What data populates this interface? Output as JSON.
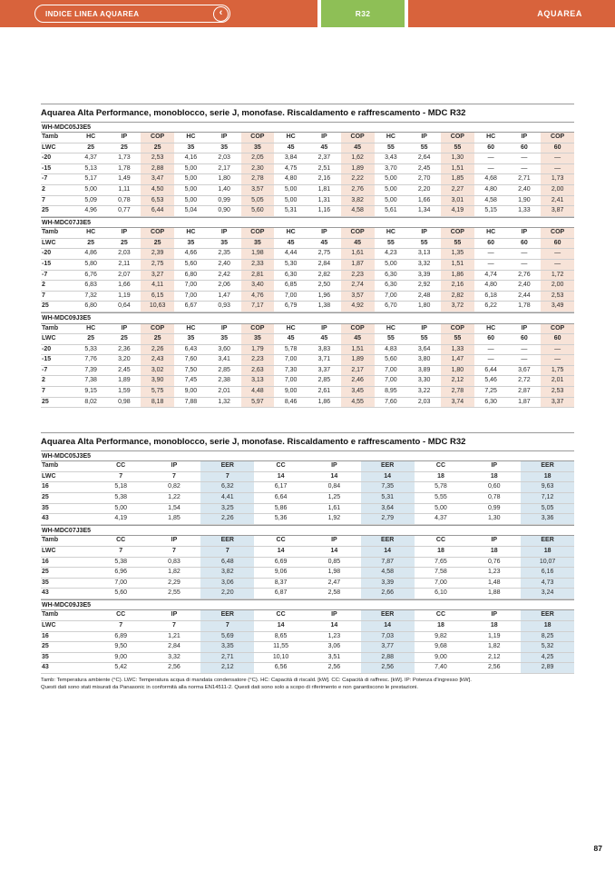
{
  "header": {
    "index_button": "INDICE LINEA AQUAREA",
    "back_chevron": "‹",
    "badge": "R32",
    "brand": "AQUAREA"
  },
  "colors": {
    "topbar_orange": "#D8633C",
    "badge_green": "#8EBF56",
    "cop_highlight": "#F7E3D8",
    "eer_highlight": "#D9E7F0"
  },
  "sections": [
    {
      "title": "Aquarea Alta Performance, monoblocco, serie J, monofase. Riscaldamento e raffrescamento - MDC  R32",
      "type": "heating",
      "highlight": "#F7E3D8",
      "col_headers": [
        "Tamb",
        "HC",
        "IP",
        "COP",
        "HC",
        "IP",
        "COP",
        "HC",
        "IP",
        "COP",
        "HC",
        "IP",
        "COP",
        "HC",
        "IP",
        "COP"
      ],
      "lwc_row": [
        "LWC",
        "25",
        "25",
        "25",
        "35",
        "35",
        "35",
        "45",
        "45",
        "45",
        "55",
        "55",
        "55",
        "60",
        "60",
        "60"
      ],
      "tables": [
        {
          "model": "WH-MDC05J3E5",
          "rows": [
            [
              "-20",
              "4,37",
              "1,73",
              "2,53",
              "4,16",
              "2,03",
              "2,05",
              "3,84",
              "2,37",
              "1,62",
              "3,43",
              "2,64",
              "1,30",
              "—",
              "—",
              "—"
            ],
            [
              "-15",
              "5,13",
              "1,78",
              "2,88",
              "5,00",
              "2,17",
              "2,30",
              "4,75",
              "2,51",
              "1,89",
              "3,70",
              "2,45",
              "1,51",
              "—",
              "—",
              "—"
            ],
            [
              "-7",
              "5,17",
              "1,49",
              "3,47",
              "5,00",
              "1,80",
              "2,78",
              "4,80",
              "2,16",
              "2,22",
              "5,00",
              "2,70",
              "1,85",
              "4,68",
              "2,71",
              "1,73"
            ],
            [
              "2",
              "5,00",
              "1,11",
              "4,50",
              "5,00",
              "1,40",
              "3,57",
              "5,00",
              "1,81",
              "2,76",
              "5,00",
              "2,20",
              "2,27",
              "4,80",
              "2,40",
              "2,00"
            ],
            [
              "7",
              "5,09",
              "0,78",
              "6,53",
              "5,00",
              "0,99",
              "5,05",
              "5,00",
              "1,31",
              "3,82",
              "5,00",
              "1,66",
              "3,01",
              "4,58",
              "1,90",
              "2,41"
            ],
            [
              "25",
              "4,96",
              "0,77",
              "6,44",
              "5,04",
              "0,90",
              "5,60",
              "5,31",
              "1,16",
              "4,58",
              "5,61",
              "1,34",
              "4,19",
              "5,15",
              "1,33",
              "3,87"
            ]
          ]
        },
        {
          "model": "WH-MDC07J3E5",
          "rows": [
            [
              "-20",
              "4,86",
              "2,03",
              "2,39",
              "4,66",
              "2,35",
              "1,98",
              "4,44",
              "2,75",
              "1,61",
              "4,23",
              "3,13",
              "1,35",
              "—",
              "—",
              "—"
            ],
            [
              "-15",
              "5,80",
              "2,11",
              "2,75",
              "5,60",
              "2,40",
              "2,33",
              "5,30",
              "2,84",
              "1,87",
              "5,00",
              "3,32",
              "1,51",
              "—",
              "—",
              "—"
            ],
            [
              "-7",
              "6,76",
              "2,07",
              "3,27",
              "6,80",
              "2,42",
              "2,81",
              "6,30",
              "2,82",
              "2,23",
              "6,30",
              "3,39",
              "1,86",
              "4,74",
              "2,76",
              "1,72"
            ],
            [
              "2",
              "6,83",
              "1,66",
              "4,11",
              "7,00",
              "2,06",
              "3,40",
              "6,85",
              "2,50",
              "2,74",
              "6,30",
              "2,92",
              "2,16",
              "4,80",
              "2,40",
              "2,00"
            ],
            [
              "7",
              "7,32",
              "1,19",
              "6,15",
              "7,00",
              "1,47",
              "4,76",
              "7,00",
              "1,96",
              "3,57",
              "7,00",
              "2,48",
              "2,82",
              "6,18",
              "2,44",
              "2,53"
            ],
            [
              "25",
              "6,80",
              "0,64",
              "10,63",
              "6,67",
              "0,93",
              "7,17",
              "6,79",
              "1,38",
              "4,92",
              "6,70",
              "1,80",
              "3,72",
              "6,22",
              "1,78",
              "3,49"
            ]
          ]
        },
        {
          "model": "WH-MDC09J3E5",
          "rows": [
            [
              "-20",
              "5,33",
              "2,36",
              "2,26",
              "6,43",
              "3,60",
              "1,79",
              "5,78",
              "3,83",
              "1,51",
              "4,83",
              "3,64",
              "1,33",
              "—",
              "—",
              "—"
            ],
            [
              "-15",
              "7,76",
              "3,20",
              "2,43",
              "7,60",
              "3,41",
              "2,23",
              "7,00",
              "3,71",
              "1,89",
              "5,60",
              "3,80",
              "1,47",
              "—",
              "—",
              "—"
            ],
            [
              "-7",
              "7,39",
              "2,45",
              "3,02",
              "7,50",
              "2,85",
              "2,63",
              "7,30",
              "3,37",
              "2,17",
              "7,00",
              "3,89",
              "1,80",
              "6,44",
              "3,67",
              "1,75"
            ],
            [
              "2",
              "7,38",
              "1,89",
              "3,90",
              "7,45",
              "2,38",
              "3,13",
              "7,00",
              "2,85",
              "2,46",
              "7,00",
              "3,30",
              "2,12",
              "5,46",
              "2,72",
              "2,01"
            ],
            [
              "7",
              "9,15",
              "1,59",
              "5,75",
              "9,00",
              "2,01",
              "4,48",
              "9,00",
              "2,61",
              "3,45",
              "8,95",
              "3,22",
              "2,78",
              "7,25",
              "2,87",
              "2,53"
            ],
            [
              "25",
              "8,02",
              "0,98",
              "8,18",
              "7,88",
              "1,32",
              "5,97",
              "8,46",
              "1,86",
              "4,55",
              "7,60",
              "2,03",
              "3,74",
              "6,30",
              "1,87",
              "3,37"
            ]
          ]
        }
      ]
    },
    {
      "title": "Aquarea Alta Performance, monoblocco, serie J, monofase. Riscaldamento e raffrescamento - MDC  R32",
      "type": "cooling",
      "highlight": "#D9E7F0",
      "col_headers": [
        "Tamb",
        "CC",
        "IP",
        "EER",
        "CC",
        "IP",
        "EER",
        "CC",
        "IP",
        "EER"
      ],
      "lwc_row": [
        "LWC",
        "7",
        "7",
        "7",
        "14",
        "14",
        "14",
        "18",
        "18",
        "18"
      ],
      "tables": [
        {
          "model": "WH-MDC05J3E5",
          "rows": [
            [
              "16",
              "5,18",
              "0,82",
              "6,32",
              "6,17",
              "0,84",
              "7,35",
              "5,78",
              "0,60",
              "9,63"
            ],
            [
              "25",
              "5,38",
              "1,22",
              "4,41",
              "6,64",
              "1,25",
              "5,31",
              "5,55",
              "0,78",
              "7,12"
            ],
            [
              "35",
              "5,00",
              "1,54",
              "3,25",
              "5,86",
              "1,61",
              "3,64",
              "5,00",
              "0,99",
              "5,05"
            ],
            [
              "43",
              "4,19",
              "1,85",
              "2,26",
              "5,36",
              "1,92",
              "2,79",
              "4,37",
              "1,30",
              "3,36"
            ]
          ]
        },
        {
          "model": "WH-MDC07J3E5",
          "rows": [
            [
              "16",
              "5,38",
              "0,83",
              "6,48",
              "6,69",
              "0,85",
              "7,87",
              "7,65",
              "0,76",
              "10,07"
            ],
            [
              "25",
              "6,96",
              "1,82",
              "3,82",
              "9,06",
              "1,98",
              "4,58",
              "7,58",
              "1,23",
              "6,16"
            ],
            [
              "35",
              "7,00",
              "2,29",
              "3,06",
              "8,37",
              "2,47",
              "3,39",
              "7,00",
              "1,48",
              "4,73"
            ],
            [
              "43",
              "5,60",
              "2,55",
              "2,20",
              "6,87",
              "2,58",
              "2,66",
              "6,10",
              "1,88",
              "3,24"
            ]
          ]
        },
        {
          "model": "WH-MDC09J3E5",
          "rows": [
            [
              "16",
              "6,89",
              "1,21",
              "5,69",
              "8,65",
              "1,23",
              "7,03",
              "9,82",
              "1,19",
              "8,25"
            ],
            [
              "25",
              "9,50",
              "2,84",
              "3,35",
              "11,55",
              "3,06",
              "3,77",
              "9,68",
              "1,82",
              "5,32"
            ],
            [
              "35",
              "9,00",
              "3,32",
              "2,71",
              "10,10",
              "3,51",
              "2,88",
              "9,00",
              "2,12",
              "4,25"
            ],
            [
              "43",
              "5,42",
              "2,56",
              "2,12",
              "6,56",
              "2,56",
              "2,56",
              "7,40",
              "2,56",
              "2,89"
            ]
          ]
        }
      ]
    }
  ],
  "footnote": {
    "line1": "Tamb: Temperatura ambiente (°C). LWC: Temperatura acqua di mandata condensatore (°C). HC: Capacità di riscald. [kW]. CC: Capacità di raffresc. [kW]. IP: Potenza d'ingresso [kW].",
    "line2": "Questi dati sono stati misurati da Panasonic in conformità alla norma EN14511-2. Questi dati sono solo a scopo di riferimento e non garantiscono le prestazioni."
  },
  "page_number": "87"
}
